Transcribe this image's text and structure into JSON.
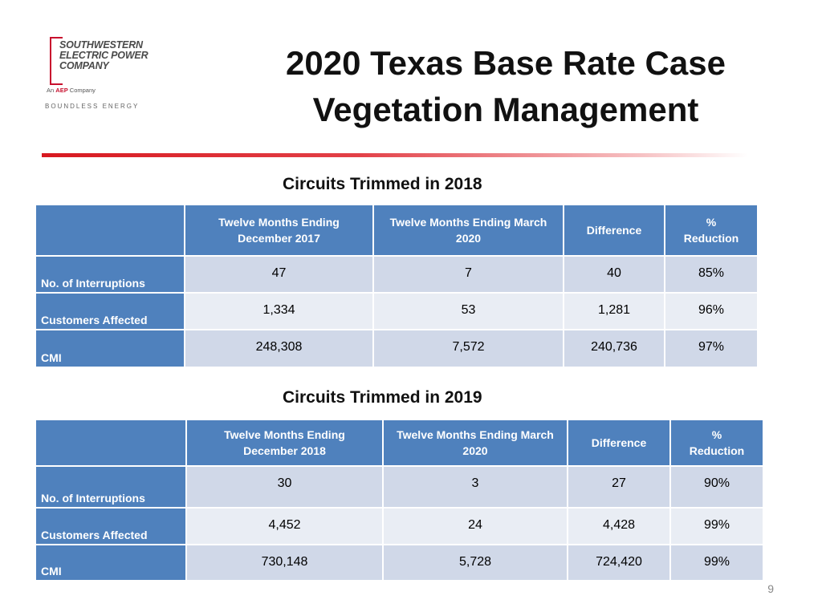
{
  "logo": {
    "line1": "SOUTHWESTERN",
    "line2": "ELECTRIC POWER",
    "line3": "COMPANY",
    "sub_prefix": "An",
    "sub_brand": "AEP",
    "sub_suffix": "Company",
    "tagline": "BOUNDLESS ENERGY"
  },
  "title": {
    "line1": "2020 Texas Base Rate Case",
    "line2": "Vegetation Management"
  },
  "tables": [
    {
      "heading": "Circuits Trimmed in 2018",
      "columns": [
        "",
        "Twelve Months Ending December 2017",
        "Twelve Months Ending March 2020",
        "Difference",
        "% Reduction"
      ],
      "col_lines": [
        [
          "Twelve Months Ending",
          "December 2017"
        ],
        [
          "Twelve Months Ending March",
          "2020"
        ],
        [
          "Difference"
        ],
        [
          "%",
          "Reduction"
        ]
      ],
      "rows": [
        {
          "label": "No. of Interruptions",
          "values": [
            "47",
            "7",
            "40",
            "85%"
          ]
        },
        {
          "label": "Customers Affected",
          "values": [
            "1,334",
            "53",
            "1,281",
            "96%"
          ]
        },
        {
          "label": "CMI",
          "values": [
            "248,308",
            "7,572",
            "240,736",
            "97%"
          ]
        }
      ]
    },
    {
      "heading": "Circuits Trimmed in 2019",
      "columns": [
        "",
        "Twelve Months Ending December 2018",
        "Twelve Months Ending March 2020",
        "Difference",
        "% Reduction"
      ],
      "col_lines": [
        [
          "Twelve Months Ending",
          "December 2018"
        ],
        [
          "Twelve Months Ending March",
          "2020"
        ],
        [
          "Difference"
        ],
        [
          "%",
          "Reduction"
        ]
      ],
      "rows": [
        {
          "label": "No. of Interruptions",
          "values": [
            "30",
            "3",
            "27",
            "90%"
          ]
        },
        {
          "label": "Customers Affected",
          "values": [
            "4,452",
            "24",
            "4,428",
            "99%"
          ]
        },
        {
          "label": "CMI",
          "values": [
            "730,148",
            "5,728",
            "724,420",
            "99%"
          ]
        }
      ]
    }
  ],
  "page_number": "9"
}
